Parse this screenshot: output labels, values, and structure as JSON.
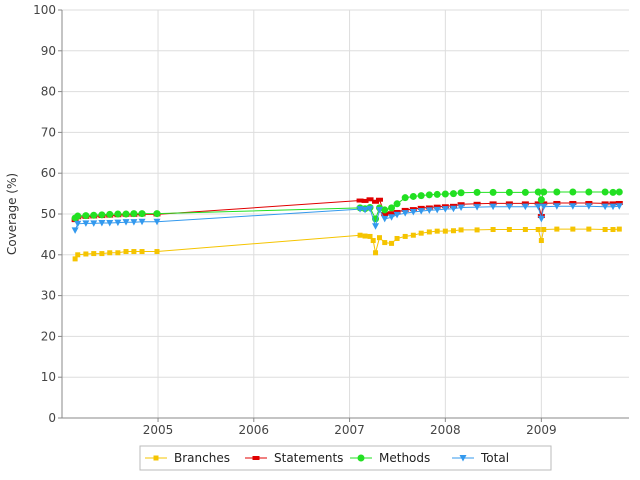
{
  "chart_data": {
    "type": "line",
    "ylabel": "Coverage (%)",
    "xlabel": "",
    "ylim": [
      0,
      100
    ],
    "xlim": [
      "2004-01-01",
      "2009-12-01"
    ],
    "y_ticks": [
      "0",
      "10",
      "20",
      "30",
      "40",
      "50",
      "60",
      "70",
      "80",
      "90",
      "100"
    ],
    "x_ticks": [
      {
        "label": "2005",
        "date": "2005-01-01"
      },
      {
        "label": "2006",
        "date": "2006-01-01"
      },
      {
        "label": "2007",
        "date": "2007-01-01"
      },
      {
        "label": "2008",
        "date": "2008-01-01"
      },
      {
        "label": "2009",
        "date": "2009-01-01"
      }
    ],
    "grid": true,
    "legend_position": "bottom",
    "series": [
      {
        "name": "Branches",
        "color": "#f5c400",
        "marker": "square",
        "points": [
          [
            "2004-02-20",
            39.0
          ],
          [
            "2004-03-01",
            40.0
          ],
          [
            "2004-04-01",
            40.2
          ],
          [
            "2004-05-01",
            40.3
          ],
          [
            "2004-06-01",
            40.3
          ],
          [
            "2004-07-01",
            40.5
          ],
          [
            "2004-08-01",
            40.5
          ],
          [
            "2004-09-01",
            40.8
          ],
          [
            "2004-10-01",
            40.8
          ],
          [
            "2004-11-01",
            40.8
          ],
          [
            "2004-12-28",
            40.8
          ],
          [
            "2007-02-10",
            44.8
          ],
          [
            "2007-03-01",
            44.6
          ],
          [
            "2007-03-20",
            44.5
          ],
          [
            "2007-04-01",
            43.5
          ],
          [
            "2007-04-10",
            40.5
          ],
          [
            "2007-04-25",
            44.2
          ],
          [
            "2007-05-15",
            43.0
          ],
          [
            "2007-06-10",
            42.8
          ],
          [
            "2007-07-01",
            44.0
          ],
          [
            "2007-08-01",
            44.5
          ],
          [
            "2007-09-01",
            44.8
          ],
          [
            "2007-10-01",
            45.3
          ],
          [
            "2007-11-01",
            45.6
          ],
          [
            "2007-12-01",
            45.8
          ],
          [
            "2008-01-01",
            45.8
          ],
          [
            "2008-02-01",
            45.9
          ],
          [
            "2008-03-01",
            46.1
          ],
          [
            "2008-05-01",
            46.1
          ],
          [
            "2008-07-01",
            46.2
          ],
          [
            "2008-09-01",
            46.2
          ],
          [
            "2008-11-01",
            46.2
          ],
          [
            "2008-12-20",
            46.2
          ],
          [
            "2009-01-01",
            43.5
          ],
          [
            "2009-01-10",
            46.2
          ],
          [
            "2009-03-01",
            46.3
          ],
          [
            "2009-05-01",
            46.3
          ],
          [
            "2009-07-01",
            46.3
          ],
          [
            "2009-09-01",
            46.2
          ],
          [
            "2009-10-01",
            46.2
          ],
          [
            "2009-10-25",
            46.3
          ]
        ]
      },
      {
        "name": "Statements",
        "color": "#e00000",
        "marker": "rect",
        "points": [
          [
            "2004-02-20",
            48.5
          ],
          [
            "2004-03-01",
            49.2
          ],
          [
            "2004-04-01",
            49.3
          ],
          [
            "2004-05-01",
            49.4
          ],
          [
            "2004-06-01",
            49.5
          ],
          [
            "2004-07-01",
            49.6
          ],
          [
            "2004-08-01",
            49.7
          ],
          [
            "2004-09-01",
            49.8
          ],
          [
            "2004-10-01",
            49.8
          ],
          [
            "2004-11-01",
            49.9
          ],
          [
            "2004-12-28",
            49.9
          ],
          [
            "2007-02-10",
            53.3
          ],
          [
            "2007-03-01",
            53.2
          ],
          [
            "2007-03-20",
            53.6
          ],
          [
            "2007-04-10",
            53.0
          ],
          [
            "2007-04-25",
            53.5
          ],
          [
            "2007-05-15",
            50.0
          ],
          [
            "2007-06-10",
            50.2
          ],
          [
            "2007-07-01",
            50.5
          ],
          [
            "2007-08-01",
            51.0
          ],
          [
            "2007-09-01",
            51.2
          ],
          [
            "2007-10-01",
            51.5
          ],
          [
            "2007-11-01",
            51.6
          ],
          [
            "2007-12-01",
            51.8
          ],
          [
            "2008-01-01",
            51.9
          ],
          [
            "2008-02-01",
            52.0
          ],
          [
            "2008-03-01",
            52.4
          ],
          [
            "2008-05-01",
            52.5
          ],
          [
            "2008-07-01",
            52.6
          ],
          [
            "2008-09-01",
            52.6
          ],
          [
            "2008-11-01",
            52.6
          ],
          [
            "2008-12-20",
            52.6
          ],
          [
            "2009-01-01",
            49.5
          ],
          [
            "2009-01-10",
            52.6
          ],
          [
            "2009-03-01",
            52.7
          ],
          [
            "2009-05-01",
            52.7
          ],
          [
            "2009-07-01",
            52.7
          ],
          [
            "2009-09-01",
            52.6
          ],
          [
            "2009-10-01",
            52.6
          ],
          [
            "2009-10-25",
            52.7
          ]
        ]
      },
      {
        "name": "Methods",
        "color": "#22e022",
        "marker": "circle",
        "points": [
          [
            "2004-02-20",
            49.0
          ],
          [
            "2004-03-01",
            49.5
          ],
          [
            "2004-04-01",
            49.6
          ],
          [
            "2004-05-01",
            49.7
          ],
          [
            "2004-06-01",
            49.8
          ],
          [
            "2004-07-01",
            49.9
          ],
          [
            "2004-08-01",
            50.0
          ],
          [
            "2004-09-01",
            50.0
          ],
          [
            "2004-10-01",
            50.1
          ],
          [
            "2004-11-01",
            50.1
          ],
          [
            "2004-12-28",
            50.1
          ],
          [
            "2007-02-10",
            51.5
          ],
          [
            "2007-03-01",
            51.3
          ],
          [
            "2007-03-20",
            51.6
          ],
          [
            "2007-04-10",
            48.8
          ],
          [
            "2007-04-25",
            51.5
          ],
          [
            "2007-05-15",
            51.0
          ],
          [
            "2007-06-10",
            51.5
          ],
          [
            "2007-07-01",
            52.5
          ],
          [
            "2007-08-01",
            54.0
          ],
          [
            "2007-09-01",
            54.3
          ],
          [
            "2007-10-01",
            54.5
          ],
          [
            "2007-11-01",
            54.7
          ],
          [
            "2007-12-01",
            54.8
          ],
          [
            "2008-01-01",
            54.9
          ],
          [
            "2008-02-01",
            55.0
          ],
          [
            "2008-03-01",
            55.2
          ],
          [
            "2008-05-01",
            55.3
          ],
          [
            "2008-07-01",
            55.3
          ],
          [
            "2008-09-01",
            55.3
          ],
          [
            "2008-11-01",
            55.3
          ],
          [
            "2008-12-20",
            55.4
          ],
          [
            "2009-01-01",
            53.5
          ],
          [
            "2009-01-10",
            55.4
          ],
          [
            "2009-03-01",
            55.4
          ],
          [
            "2009-05-01",
            55.4
          ],
          [
            "2009-07-01",
            55.4
          ],
          [
            "2009-09-01",
            55.4
          ],
          [
            "2009-10-01",
            55.3
          ],
          [
            "2009-10-25",
            55.4
          ]
        ]
      },
      {
        "name": "Total",
        "color": "#3399ee",
        "marker": "triangle-down",
        "points": [
          [
            "2004-02-20",
            46.0
          ],
          [
            "2004-03-01",
            47.6
          ],
          [
            "2004-04-01",
            47.7
          ],
          [
            "2004-05-01",
            47.7
          ],
          [
            "2004-06-01",
            47.8
          ],
          [
            "2004-07-01",
            47.8
          ],
          [
            "2004-08-01",
            47.9
          ],
          [
            "2004-09-01",
            48.0
          ],
          [
            "2004-10-01",
            48.0
          ],
          [
            "2004-11-01",
            48.1
          ],
          [
            "2004-12-28",
            48.1
          ],
          [
            "2007-02-10",
            51.2
          ],
          [
            "2007-03-01",
            51.0
          ],
          [
            "2007-03-20",
            51.3
          ],
          [
            "2007-04-10",
            47.0
          ],
          [
            "2007-04-25",
            51.0
          ],
          [
            "2007-05-15",
            48.8
          ],
          [
            "2007-06-10",
            49.2
          ],
          [
            "2007-07-01",
            49.8
          ],
          [
            "2007-08-01",
            50.2
          ],
          [
            "2007-09-01",
            50.5
          ],
          [
            "2007-10-01",
            50.7
          ],
          [
            "2007-11-01",
            50.9
          ],
          [
            "2007-12-01",
            51.0
          ],
          [
            "2008-01-01",
            51.2
          ],
          [
            "2008-02-01",
            51.3
          ],
          [
            "2008-03-01",
            51.6
          ],
          [
            "2008-05-01",
            51.7
          ],
          [
            "2008-07-01",
            51.8
          ],
          [
            "2008-09-01",
            51.8
          ],
          [
            "2008-11-01",
            51.8
          ],
          [
            "2008-12-20",
            51.8
          ],
          [
            "2009-01-01",
            48.8
          ],
          [
            "2009-01-10",
            51.8
          ],
          [
            "2009-03-01",
            51.9
          ],
          [
            "2009-05-01",
            51.9
          ],
          [
            "2009-07-01",
            51.9
          ],
          [
            "2009-09-01",
            51.8
          ],
          [
            "2009-10-01",
            51.8
          ],
          [
            "2009-10-25",
            51.9
          ]
        ]
      }
    ]
  }
}
